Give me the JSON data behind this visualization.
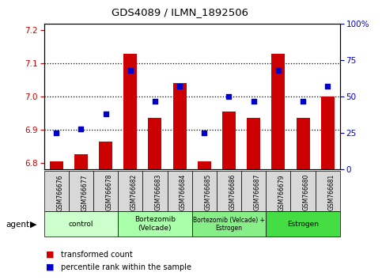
{
  "title": "GDS4089 / ILMN_1892506",
  "samples": [
    "GSM766676",
    "GSM766677",
    "GSM766678",
    "GSM766682",
    "GSM766683",
    "GSM766684",
    "GSM766685",
    "GSM766686",
    "GSM766687",
    "GSM766679",
    "GSM766680",
    "GSM766681"
  ],
  "transformed_count": [
    6.805,
    6.825,
    6.865,
    7.13,
    6.935,
    7.04,
    6.805,
    6.955,
    6.935,
    7.13,
    6.935,
    7.0
  ],
  "percentile_rank": [
    25,
    28,
    38,
    68,
    47,
    57,
    25,
    50,
    47,
    68,
    47,
    57
  ],
  "ylim_left": [
    6.78,
    7.22
  ],
  "ylim_right": [
    0,
    100
  ],
  "yticks_left": [
    6.8,
    6.9,
    7.0,
    7.1,
    7.2
  ],
  "yticks_right": [
    0,
    25,
    50,
    75,
    100
  ],
  "ytick_labels_right": [
    "0",
    "25",
    "50",
    "75",
    "100%"
  ],
  "bar_color": "#cc0000",
  "dot_color": "#0000cc",
  "groups": [
    {
      "label": "control",
      "start": 0,
      "end": 3,
      "color": "#ccffcc"
    },
    {
      "label": "Bortezomib\n(Velcade)",
      "start": 3,
      "end": 6,
      "color": "#aaffaa"
    },
    {
      "label": "Bortezomib (Velcade) +\nEstrogen",
      "start": 6,
      "end": 9,
      "color": "#88ee88"
    },
    {
      "label": "Estrogen",
      "start": 9,
      "end": 12,
      "color": "#44dd44"
    }
  ],
  "group_colors": [
    "#ccffcc",
    "#aaffaa",
    "#88ee88",
    "#44dd44"
  ],
  "left_axis_color": "#cc0000",
  "right_axis_color": "#0000cc",
  "legend_items": [
    {
      "label": "transformed count",
      "color": "#cc0000"
    },
    {
      "label": "percentile rank within the sample",
      "color": "#0000cc"
    }
  ]
}
